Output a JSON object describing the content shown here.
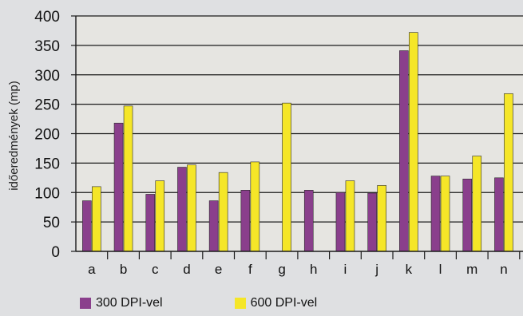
{
  "chart_data": {
    "type": "bar",
    "title": "",
    "xlabel": "",
    "ylabel": "időeredmények (mp)",
    "ylim": [
      0,
      400
    ],
    "yticks": [
      0,
      50,
      100,
      150,
      200,
      250,
      300,
      350,
      400
    ],
    "grid": true,
    "legend_position": "bottom",
    "categories": [
      "a",
      "b",
      "c",
      "d",
      "e",
      "f",
      "g",
      "h",
      "i",
      "j",
      "k",
      "l",
      "m",
      "n"
    ],
    "series": [
      {
        "name": "300 DPI-vel",
        "color": "#8a3f8c",
        "values": [
          86,
          218,
          97,
          143,
          86,
          104,
          null,
          104,
          100,
          99,
          341,
          128,
          123,
          125
        ]
      },
      {
        "name": "600 DPI-vel",
        "color": "#f5e628",
        "values": [
          110,
          247,
          120,
          147,
          134,
          152,
          252,
          null,
          120,
          112,
          372,
          128,
          162,
          268
        ]
      }
    ]
  }
}
